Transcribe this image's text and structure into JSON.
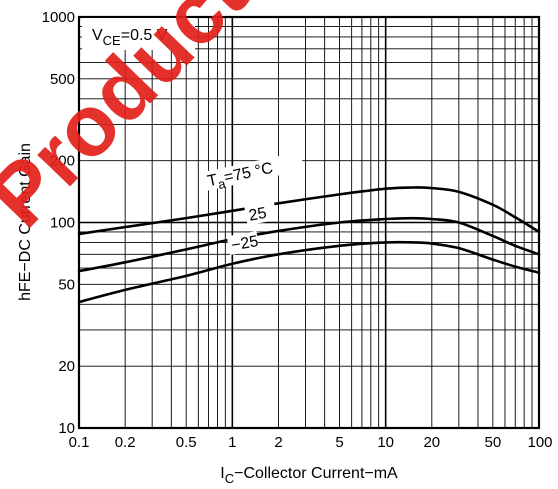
{
  "chart_data": {
    "type": "line",
    "x_scale": "log",
    "y_scale": "log",
    "xlim": [
      0.1,
      100
    ],
    "ylim": [
      10,
      1000
    ],
    "xlabel": {
      "pre": "I",
      "sub": "C",
      "post": "−Collector Current−mA"
    },
    "ylabel": "hFE−DC Current Gain",
    "x_ticks": [
      {
        "v": 0.1,
        "t": "0.1"
      },
      {
        "v": 0.2,
        "t": "0.2"
      },
      {
        "v": 0.5,
        "t": "0.5"
      },
      {
        "v": 1,
        "t": "1"
      },
      {
        "v": 2,
        "t": "2"
      },
      {
        "v": 5,
        "t": "5"
      },
      {
        "v": 10,
        "t": "10"
      },
      {
        "v": 20,
        "t": "20"
      },
      {
        "v": 50,
        "t": "50"
      },
      {
        "v": 100,
        "t": "100"
      }
    ],
    "y_ticks": [
      {
        "v": 10,
        "t": "10"
      },
      {
        "v": 20,
        "t": "20"
      },
      {
        "v": 50,
        "t": "50"
      },
      {
        "v": 100,
        "t": "100"
      },
      {
        "v": 200,
        "t": "200"
      },
      {
        "v": 500,
        "t": "500"
      },
      {
        "v": 1000,
        "t": "1000"
      }
    ],
    "grid": true,
    "condition": {
      "pre": "V",
      "sub": "CE",
      "post": "=0.5 V"
    },
    "series": [
      {
        "name": "Ta=75 °C",
        "label": {
          "pre": "T",
          "sub": "a",
          "post": "=75 °C"
        },
        "x": [
          0.1,
          0.2,
          0.5,
          1,
          2,
          5,
          10,
          15,
          20,
          30,
          50,
          70,
          100
        ],
        "y": [
          88,
          95,
          105,
          114,
          124,
          137,
          146,
          148,
          147,
          141,
          122,
          106,
          90
        ]
      },
      {
        "name": "25",
        "label": {
          "pre": "25",
          "sub": "",
          "post": ""
        },
        "x": [
          0.1,
          0.2,
          0.5,
          1,
          2,
          5,
          10,
          15,
          20,
          30,
          50,
          70,
          100
        ],
        "y": [
          58,
          64,
          74,
          83,
          91,
          100,
          104,
          105,
          104,
          100,
          86,
          77,
          70
        ]
      },
      {
        "name": "−25",
        "label": {
          "pre": "−25",
          "sub": "",
          "post": ""
        },
        "x": [
          0.1,
          0.2,
          0.5,
          1,
          2,
          5,
          10,
          15,
          20,
          30,
          50,
          70,
          100
        ],
        "y": [
          41,
          47,
          55,
          63,
          70,
          77,
          80,
          80,
          79,
          75,
          66,
          61,
          57
        ]
      }
    ]
  },
  "watermark": "Product"
}
